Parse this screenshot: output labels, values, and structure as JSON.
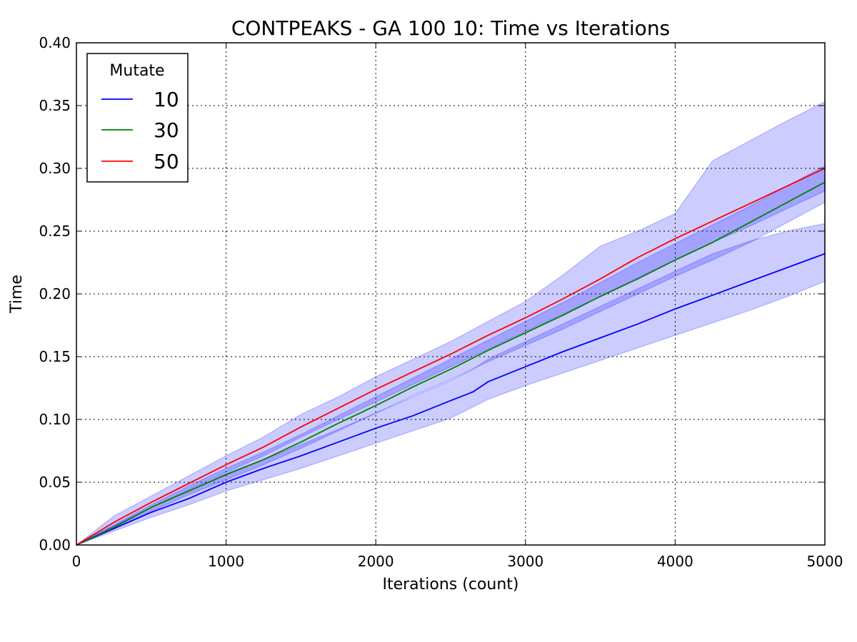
{
  "chart_data": {
    "type": "line",
    "title": "CONTPEAKS - GA 100 10: Time vs Iterations",
    "xlabel": "Iterations (count)",
    "ylabel": "Time",
    "xlim": [
      0,
      5000
    ],
    "ylim": [
      0,
      0.4
    ],
    "x_ticks": [
      0,
      1000,
      2000,
      3000,
      4000,
      5000
    ],
    "x_tick_labels": [
      "0",
      "1000",
      "2000",
      "3000",
      "4000",
      "5000"
    ],
    "y_ticks": [
      0,
      0.05,
      0.1,
      0.15,
      0.2,
      0.25,
      0.3,
      0.35,
      0.4
    ],
    "y_tick_labels": [
      "0.00",
      "0.05",
      "0.10",
      "0.15",
      "0.20",
      "0.25",
      "0.30",
      "0.35",
      "0.40"
    ],
    "grid": true,
    "legend": {
      "title": "Mutate",
      "position": "top-left"
    },
    "band_color": "#0000ff",
    "series": [
      {
        "name": "10",
        "color": "#0000ff",
        "x": [
          0,
          250,
          500,
          750,
          1000,
          1250,
          1500,
          1750,
          2000,
          2250,
          2500,
          2650,
          2750,
          3000,
          3250,
          3500,
          3750,
          4000,
          4250,
          4500,
          4750,
          5000
        ],
        "y": [
          0,
          0.013,
          0.026,
          0.037,
          0.05,
          0.061,
          0.071,
          0.082,
          0.093,
          0.103,
          0.115,
          0.122,
          0.13,
          0.142,
          0.154,
          0.165,
          0.176,
          0.188,
          0.199,
          0.21,
          0.221,
          0.232
        ],
        "lower": [
          0,
          0.011,
          0.022,
          0.032,
          0.043,
          0.052,
          0.061,
          0.071,
          0.081,
          0.091,
          0.101,
          0.11,
          0.116,
          0.127,
          0.137,
          0.147,
          0.157,
          0.167,
          0.177,
          0.187,
          0.198,
          0.21
        ],
        "upper": [
          0,
          0.015,
          0.03,
          0.043,
          0.057,
          0.068,
          0.08,
          0.092,
          0.105,
          0.118,
          0.131,
          0.14,
          0.148,
          0.162,
          0.176,
          0.19,
          0.204,
          0.218,
          0.232,
          0.242,
          0.25,
          0.256
        ]
      },
      {
        "name": "30",
        "color": "#008000",
        "x": [
          0,
          250,
          500,
          750,
          1000,
          1250,
          1500,
          1750,
          2000,
          2250,
          2500,
          2750,
          3000,
          3250,
          3500,
          3750,
          4000,
          4250,
          4500,
          4750,
          5000
        ],
        "y": [
          0,
          0.014,
          0.03,
          0.043,
          0.056,
          0.068,
          0.082,
          0.097,
          0.111,
          0.126,
          0.14,
          0.155,
          0.169,
          0.183,
          0.198,
          0.212,
          0.227,
          0.241,
          0.257,
          0.273,
          0.289
        ],
        "lower": [
          0,
          0.013,
          0.027,
          0.04,
          0.052,
          0.064,
          0.077,
          0.091,
          0.105,
          0.119,
          0.132,
          0.146,
          0.159,
          0.172,
          0.186,
          0.2,
          0.214,
          0.227,
          0.241,
          0.257,
          0.273
        ],
        "upper": [
          0,
          0.016,
          0.032,
          0.047,
          0.061,
          0.074,
          0.088,
          0.103,
          0.118,
          0.133,
          0.148,
          0.163,
          0.178,
          0.193,
          0.209,
          0.225,
          0.24,
          0.255,
          0.27,
          0.286,
          0.302
        ]
      },
      {
        "name": "50",
        "color": "#ff0000",
        "x": [
          0,
          250,
          500,
          750,
          1000,
          1250,
          1500,
          1750,
          2000,
          2250,
          2500,
          2750,
          3000,
          3250,
          3500,
          3750,
          4000,
          4250,
          4500,
          4750,
          5000
        ],
        "y": [
          0,
          0.018,
          0.034,
          0.049,
          0.064,
          0.078,
          0.094,
          0.109,
          0.124,
          0.138,
          0.152,
          0.167,
          0.181,
          0.196,
          0.212,
          0.229,
          0.244,
          0.258,
          0.272,
          0.286,
          0.3
        ],
        "lower": [
          0,
          0.015,
          0.03,
          0.044,
          0.058,
          0.071,
          0.086,
          0.1,
          0.114,
          0.128,
          0.142,
          0.156,
          0.17,
          0.184,
          0.198,
          0.213,
          0.227,
          0.241,
          0.254,
          0.268,
          0.282
        ],
        "upper": [
          0,
          0.023,
          0.039,
          0.055,
          0.071,
          0.086,
          0.104,
          0.118,
          0.134,
          0.148,
          0.162,
          0.178,
          0.194,
          0.215,
          0.238,
          0.25,
          0.264,
          0.306,
          0.322,
          0.338,
          0.353
        ]
      }
    ]
  }
}
